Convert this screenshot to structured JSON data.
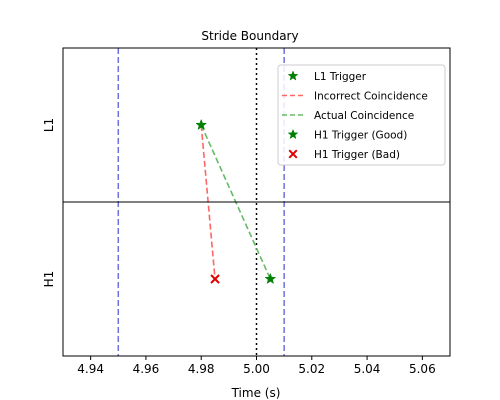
{
  "chart_data": {
    "type": "scatter",
    "title": "Stride Boundary",
    "xlabel": "Time (s)",
    "xlim": [
      4.93,
      5.07
    ],
    "x_ticks": [
      "4.94",
      "4.96",
      "4.98",
      "5.00",
      "5.02",
      "5.04",
      "5.06"
    ],
    "x_tick_values": [
      4.94,
      4.96,
      4.98,
      5.0,
      5.02,
      5.04,
      5.06
    ],
    "rows": [
      "L1",
      "H1"
    ],
    "grid": false,
    "legend_position": "top-right",
    "vertical_lines": [
      {
        "x": 4.95,
        "style": "dashed",
        "color": "#7070e0"
      },
      {
        "x": 5.01,
        "style": "dashed",
        "color": "#7070e0"
      },
      {
        "x": 5.0,
        "style": "dotted",
        "color": "#000000"
      }
    ],
    "series": [
      {
        "name": "L1 Trigger",
        "kind": "marker",
        "marker": "star",
        "color": "#008000",
        "points": [
          {
            "x": 4.98,
            "row": "L1"
          }
        ]
      },
      {
        "name": "Incorrect Coincidence",
        "kind": "line",
        "style": "dashed",
        "color": "#ff6666",
        "points": [
          {
            "x": 4.98,
            "row": "L1"
          },
          {
            "x": 4.985,
            "row": "H1"
          }
        ]
      },
      {
        "name": "Actual Coincidence",
        "kind": "line",
        "style": "dashed",
        "color": "#66bb66",
        "points": [
          {
            "x": 4.98,
            "row": "L1"
          },
          {
            "x": 5.005,
            "row": "H1"
          }
        ]
      },
      {
        "name": "H1 Trigger (Good)",
        "kind": "marker",
        "marker": "star",
        "color": "#008000",
        "points": [
          {
            "x": 5.005,
            "row": "H1"
          }
        ]
      },
      {
        "name": "H1 Trigger (Bad)",
        "kind": "marker",
        "marker": "x",
        "color": "#e00000",
        "points": [
          {
            "x": 4.985,
            "row": "H1"
          }
        ]
      }
    ]
  }
}
